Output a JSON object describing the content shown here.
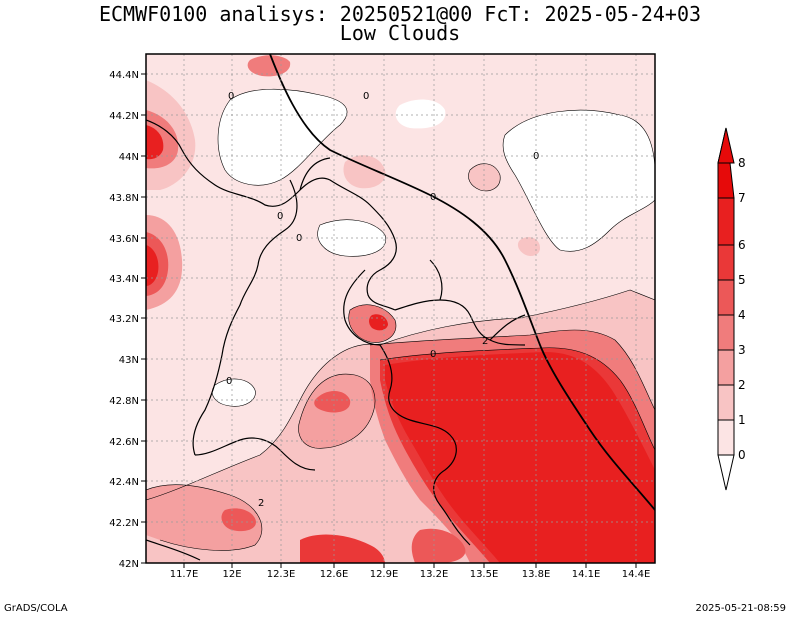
{
  "header": {
    "line1": "ECMWF0100 analisys: 20250521@00 FcT: 2025-05-24+03",
    "line2": "Low Clouds"
  },
  "footer": {
    "left": "GrADS/COLA",
    "right": "2025-05-21-08:59"
  },
  "map": {
    "lon_labels": [
      "11.7E",
      "12E",
      "12.3E",
      "12.6E",
      "12.9E",
      "13.2E",
      "13.5E",
      "13.8E",
      "14.1E",
      "14.4E"
    ],
    "lat_labels": [
      "44.4N",
      "44.2N",
      "44N",
      "43.8N",
      "43.6N",
      "43.4N",
      "43.2N",
      "43N",
      "42.8N",
      "42.6N",
      "42.4N",
      "42.2N",
      "42N"
    ],
    "contour_labels": [
      "0",
      "0",
      "0",
      "0",
      "0",
      "0",
      "0",
      "0",
      "2",
      "2"
    ]
  },
  "colorbar": {
    "labels": [
      "0",
      "1",
      "2",
      "3",
      "4",
      "5",
      "6",
      "7",
      "8"
    ],
    "colors": [
      "#ffffff",
      "#fce4e4",
      "#f8c4c4",
      "#f4a0a0",
      "#f07c7c",
      "#ec5858",
      "#ea3838",
      "#e82020",
      "#e60a0a"
    ]
  }
}
